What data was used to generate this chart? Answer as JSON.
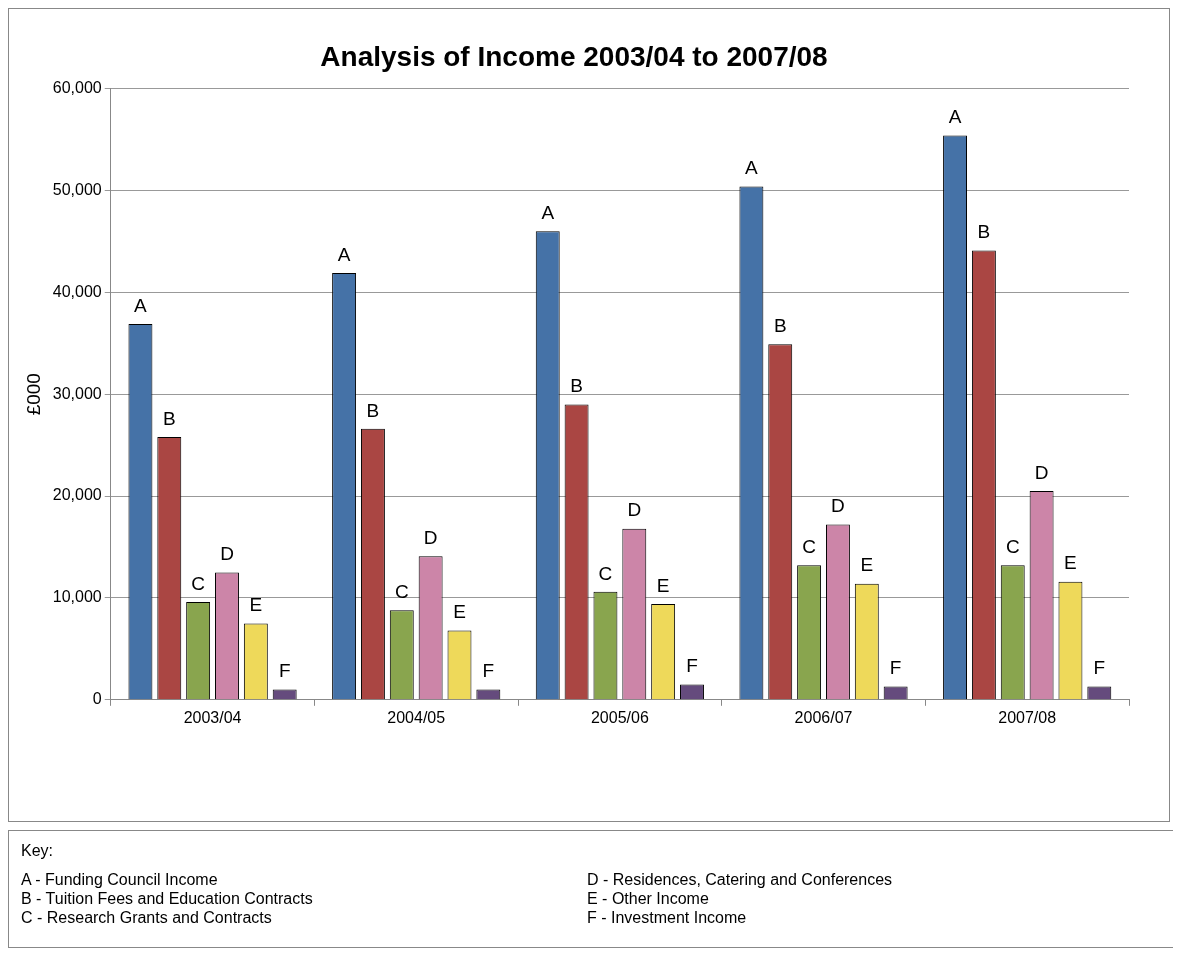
{
  "chart_data": {
    "type": "bar",
    "title": "Analysis of Income 2003/04 to 2007/08",
    "ylabel": "£000",
    "categories": [
      "2003/04",
      "2004/05",
      "2005/06",
      "2006/07",
      "2007/08"
    ],
    "series": [
      {
        "name": "A",
        "color": "#4572a7",
        "values": [
          36900,
          41900,
          46000,
          50400,
          55400
        ]
      },
      {
        "name": "B",
        "color": "#aa4643",
        "values": [
          25800,
          26600,
          29000,
          34900,
          44100
        ]
      },
      {
        "name": "C",
        "color": "#89a54e",
        "values": [
          9600,
          8800,
          10600,
          13200,
          13200
        ]
      },
      {
        "name": "D",
        "color": "#cc85a8",
        "values": [
          12500,
          14100,
          16800,
          17200,
          20500
        ]
      },
      {
        "name": "E",
        "color": "#eed95a",
        "values": [
          7500,
          6800,
          9400,
          11400,
          11600
        ]
      },
      {
        "name": "F",
        "color": "#654b7d",
        "values": [
          1000,
          1000,
          1500,
          1300,
          1300
        ]
      }
    ],
    "ylim": [
      0,
      60000
    ],
    "yticks": [
      {
        "value": 0,
        "label": "0"
      },
      {
        "value": 10000,
        "label": "10,000"
      },
      {
        "value": 20000,
        "label": "20,000"
      },
      {
        "value": 30000,
        "label": "30,000"
      },
      {
        "value": 40000,
        "label": "40,000"
      },
      {
        "value": 50000,
        "label": "50,000"
      },
      {
        "value": 60000,
        "label": "60,000"
      }
    ],
    "grid": "y",
    "legend": false,
    "annotations": [
      "Key:",
      "A - Funding Council Income",
      "B - Tuition Fees and Education Contracts",
      "C - Research Grants and Contracts",
      "D - Residences, Catering and Conferences",
      "E - Other Income",
      "F - Investment Income"
    ]
  }
}
